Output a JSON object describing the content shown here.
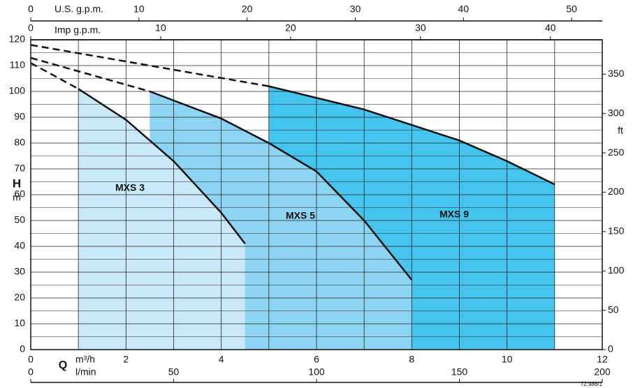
{
  "chart_data": {
    "type": "pump-curve",
    "x_label": "m³/h",
    "xlim": [
      0,
      12
    ],
    "xticks": [
      0,
      2,
      4,
      6,
      8,
      10,
      12
    ],
    "y_label": "H",
    "y_unit": "m",
    "ylim": [
      0,
      120
    ],
    "yticks": [
      0,
      10,
      20,
      30,
      40,
      50,
      60,
      70,
      80,
      90,
      100,
      110,
      120
    ],
    "y2_label": "ft",
    "y2lim": [
      0,
      393.7
    ],
    "y2ticks": [
      0,
      50,
      100,
      150,
      200,
      250,
      300,
      350
    ],
    "q_label": "Q",
    "bottom_axis": {
      "label": "l/min",
      "lim": [
        0,
        200
      ],
      "ticks": [
        0,
        50,
        100,
        150,
        200
      ]
    },
    "top_axes": [
      {
        "label": "U.S. g.p.m.",
        "lim": [
          0,
          52.83
        ],
        "ticks": [
          0,
          10,
          20,
          30,
          40,
          50
        ]
      },
      {
        "label": "Imp g.p.m.",
        "lim": [
          0,
          43.99
        ],
        "ticks": [
          0,
          10,
          20,
          30,
          40
        ]
      }
    ],
    "grid": true,
    "footnote": "72,986/1",
    "series": [
      {
        "name": "MXS 9",
        "color": "#45c4ee",
        "x": [
          5,
          6,
          7,
          8,
          9,
          10,
          11
        ],
        "values": [
          102,
          97.5,
          93,
          87,
          81,
          73,
          64
        ],
        "extrapolated": {
          "x": [
            0,
            5
          ],
          "values": [
            118,
            102
          ]
        }
      },
      {
        "name": "MXS 5",
        "color": "#8dd4f2",
        "x": [
          2.5,
          4,
          5,
          6,
          7,
          8
        ],
        "values": [
          100,
          89.5,
          80,
          69,
          50,
          27
        ],
        "extrapolated": {
          "x": [
            0,
            2.5
          ],
          "values": [
            113,
            100
          ]
        }
      },
      {
        "name": "MXS 3",
        "color": "#c9e9f8",
        "x": [
          1,
          2,
          3,
          4,
          4.5
        ],
        "values": [
          101,
          89,
          73,
          53,
          41
        ],
        "extrapolated": {
          "x": [
            0,
            1
          ],
          "values": [
            111,
            101
          ]
        }
      }
    ]
  }
}
